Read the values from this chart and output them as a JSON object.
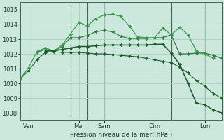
{
  "title": "",
  "xlabel": "Pression niveau de la mer( hPa )",
  "ylabel": "",
  "bg_color": "#cce8dc",
  "grid_color": "#aacfbe",
  "line_color_1": "#1a5c2a",
  "line_color_2": "#2d7a3a",
  "line_color_3": "#3a9a4a",
  "line_color_4": "#1a5c2a",
  "ylim": [
    1007.5,
    1015.5
  ],
  "yticks": [
    1008,
    1009,
    1010,
    1011,
    1012,
    1013,
    1014,
    1015
  ],
  "xlim": [
    0,
    48
  ],
  "vlines": [
    12,
    16,
    20,
    36,
    44
  ],
  "xtick_pos": [
    2,
    14,
    20,
    32,
    44
  ],
  "xtick_labels": [
    "Ven",
    "Mar",
    "Sam",
    "Dim",
    "Lun"
  ],
  "series1_x": [
    0,
    2,
    4,
    6,
    8,
    10,
    12,
    14,
    16,
    18,
    20,
    22,
    24,
    26,
    28,
    30,
    32,
    34,
    36,
    38,
    40,
    42,
    44,
    46,
    48
  ],
  "series1_y": [
    1010.3,
    1010.85,
    1011.6,
    1012.1,
    1012.15,
    1012.1,
    1012.1,
    1012.1,
    1012.05,
    1012.0,
    1012.0,
    1011.95,
    1011.9,
    1011.85,
    1011.8,
    1011.7,
    1011.6,
    1011.5,
    1011.4,
    1011.1,
    1010.7,
    1010.2,
    1009.8,
    1009.3,
    1009.0
  ],
  "series2_x": [
    4,
    6,
    8,
    10,
    12,
    14,
    16,
    18,
    20,
    22,
    24,
    26,
    28,
    30,
    32,
    34,
    36,
    38,
    40,
    42,
    44,
    46,
    48
  ],
  "series2_y": [
    1012.1,
    1012.3,
    1012.15,
    1012.5,
    1013.1,
    1013.1,
    1013.25,
    1013.5,
    1013.6,
    1013.5,
    1013.2,
    1013.05,
    1013.05,
    1013.05,
    1013.1,
    1013.1,
    1013.3,
    1012.0,
    1012.0,
    1012.05,
    1012.05,
    1011.9,
    1011.7
  ],
  "series3_x": [
    0,
    2,
    4,
    6,
    8,
    10,
    12,
    14,
    16,
    18,
    20,
    22,
    24,
    26,
    28,
    30,
    32,
    34,
    36,
    38,
    40,
    42,
    44,
    46
  ],
  "series3_y": [
    1010.3,
    1011.05,
    1012.15,
    1012.4,
    1012.2,
    1012.6,
    1013.35,
    1014.15,
    1013.9,
    1014.4,
    1014.65,
    1014.7,
    1014.55,
    1013.9,
    1013.15,
    1013.1,
    1013.1,
    1013.75,
    1013.3,
    1013.8,
    1013.3,
    1012.2,
    1012.0,
    1011.7
  ],
  "series4_x": [
    6,
    8,
    10,
    12,
    14,
    16,
    18,
    20,
    22,
    24,
    26,
    28,
    30,
    32,
    34,
    36,
    38,
    40,
    42,
    44,
    46,
    48
  ],
  "series4_y": [
    1012.2,
    1012.2,
    1012.3,
    1012.4,
    1012.5,
    1012.5,
    1012.55,
    1012.6,
    1012.6,
    1012.6,
    1012.6,
    1012.6,
    1012.6,
    1012.65,
    1012.65,
    1012.05,
    1011.3,
    1010.0,
    1008.65,
    1008.55,
    1008.2,
    1008.0
  ]
}
